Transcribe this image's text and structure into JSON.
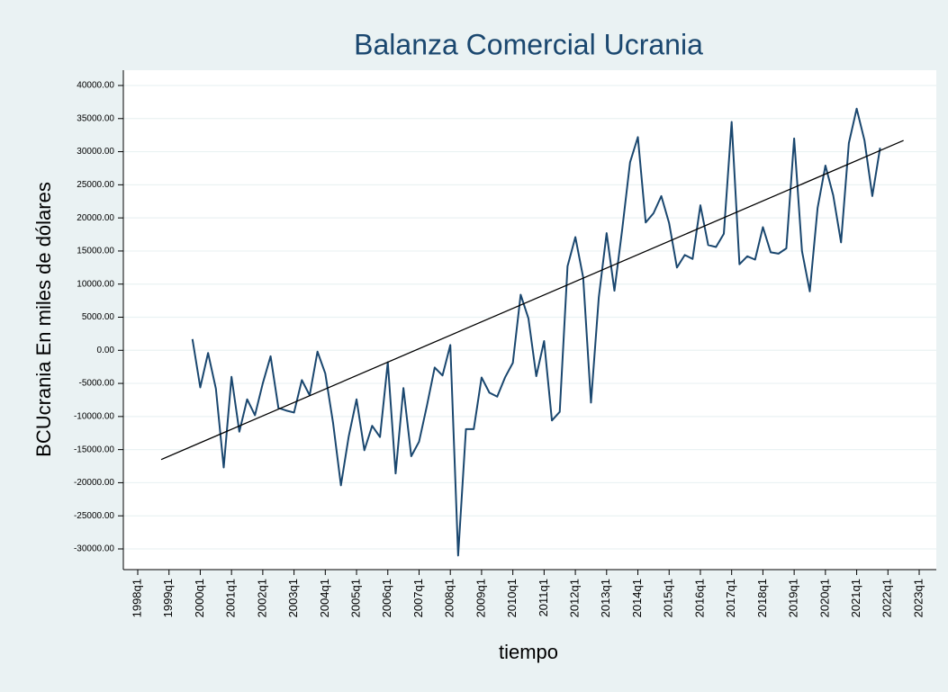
{
  "chart_data": {
    "type": "line",
    "title": "Balanza Comercial Ucrania",
    "x_label": "tiempo",
    "y_label": "BCUcrania En miles de dólares",
    "grid": true,
    "xlim": [
      152,
      252
    ],
    "ylim": [
      -30000,
      40000
    ],
    "xticks": [
      {
        "value": 152,
        "label": "1998q1"
      },
      {
        "value": 156,
        "label": "1999q1"
      },
      {
        "value": 160,
        "label": "2000q1"
      },
      {
        "value": 164,
        "label": "2001q1"
      },
      {
        "value": 168,
        "label": "2002q1"
      },
      {
        "value": 172,
        "label": "2003q1"
      },
      {
        "value": 176,
        "label": "2004q1"
      },
      {
        "value": 180,
        "label": "2005q1"
      },
      {
        "value": 184,
        "label": "2006q1"
      },
      {
        "value": 188,
        "label": "2007q1"
      },
      {
        "value": 192,
        "label": "2008q1"
      },
      {
        "value": 196,
        "label": "2009q1"
      },
      {
        "value": 200,
        "label": "2010q1"
      },
      {
        "value": 204,
        "label": "2011q1"
      },
      {
        "value": 208,
        "label": "2012q1"
      },
      {
        "value": 212,
        "label": "2013q1"
      },
      {
        "value": 216,
        "label": "2014q1"
      },
      {
        "value": 220,
        "label": "2015q1"
      },
      {
        "value": 224,
        "label": "2016q1"
      },
      {
        "value": 228,
        "label": "2017q1"
      },
      {
        "value": 232,
        "label": "2018q1"
      },
      {
        "value": 236,
        "label": "2019q1"
      },
      {
        "value": 240,
        "label": "2020q1"
      },
      {
        "value": 244,
        "label": "2021q1"
      },
      {
        "value": 248,
        "label": "2022q1"
      },
      {
        "value": 252,
        "label": "2023q1"
      }
    ],
    "yticks": [
      {
        "value": 40000,
        "label": "40000.00"
      },
      {
        "value": 35000,
        "label": "35000.00"
      },
      {
        "value": 30000,
        "label": "30000.00"
      },
      {
        "value": 25000,
        "label": "25000.00"
      },
      {
        "value": 20000,
        "label": "20000.00"
      },
      {
        "value": 15000,
        "label": "15000.00"
      },
      {
        "value": 10000,
        "label": "10000.00"
      },
      {
        "value": 5000,
        "label": "5000.00"
      },
      {
        "value": 0,
        "label": "0.00"
      },
      {
        "value": -5000,
        "label": "-5000.00"
      },
      {
        "value": -10000,
        "label": "-10000.00"
      },
      {
        "value": -15000,
        "label": "-15000.00"
      },
      {
        "value": -20000,
        "label": "-20000.00"
      },
      {
        "value": -25000,
        "label": "-25000.00"
      },
      {
        "value": -30000,
        "label": "-30000.00"
      }
    ],
    "series": [
      {
        "color": "#1a476f",
        "x": [
          159,
          160,
          161,
          162,
          163,
          164,
          165,
          166,
          167,
          168,
          169,
          170,
          171,
          172,
          173,
          174,
          175,
          176,
          177,
          178,
          179,
          180,
          181,
          182,
          183,
          184,
          185,
          186,
          187,
          188,
          189,
          190,
          191,
          192,
          193,
          194,
          195,
          196,
          197,
          198,
          199,
          200,
          201,
          202,
          203,
          204,
          205,
          206,
          207,
          208,
          209,
          210,
          211,
          212,
          213,
          214,
          215,
          216,
          217,
          218,
          219,
          220,
          221,
          222,
          223,
          224,
          225,
          226,
          227,
          228,
          229,
          230,
          231,
          232,
          233,
          234,
          235,
          236,
          237,
          238,
          239,
          240,
          241,
          242,
          243,
          244,
          245,
          246,
          247
        ],
        "values": [
          1700,
          -5600,
          -400,
          -5800,
          -17700,
          -4000,
          -12300,
          -7400,
          -9800,
          -5000,
          -900,
          -8700,
          -9100,
          -9400,
          -4500,
          -6800,
          -200,
          -3500,
          -11000,
          -20400,
          -13000,
          -7400,
          -15100,
          -11400,
          -13100,
          -1800,
          -18600,
          -5700,
          -16000,
          -13800,
          -8400,
          -2600,
          -3800,
          800,
          -31000,
          -11900,
          -11900,
          -4100,
          -6400,
          -7000,
          -4100,
          -1900,
          8400,
          4800,
          -3900,
          1400,
          -10600,
          -9300,
          12700,
          17100,
          11000,
          -7900,
          8000,
          17700,
          9000,
          18300,
          28400,
          32200,
          19300,
          20700,
          23300,
          19200,
          12500,
          14400,
          13800,
          21900,
          15900,
          15600,
          17600,
          34500,
          13000,
          14200,
          13700,
          18600,
          14800,
          14600,
          15400,
          32000,
          15000,
          8900,
          21500,
          27900,
          23400,
          16300,
          31300,
          36500,
          31700,
          23300,
          30600
        ]
      },
      {
        "color": "#000000",
        "x": [
          155,
          250
        ],
        "values": [
          -16500,
          31700
        ]
      }
    ]
  }
}
